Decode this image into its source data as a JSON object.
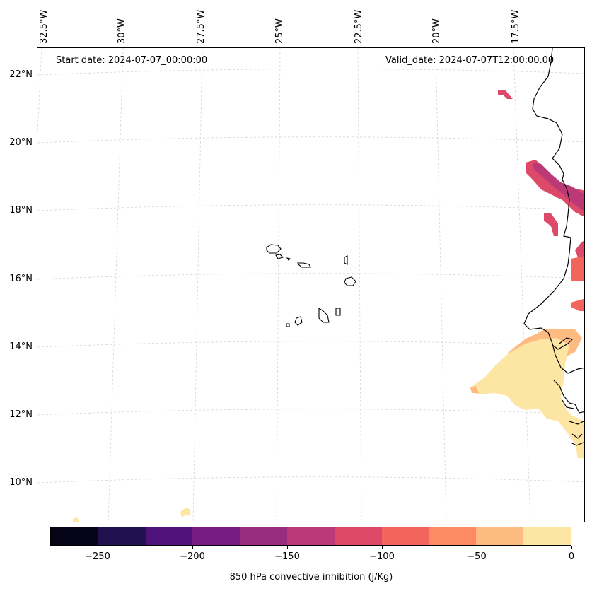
{
  "header": {
    "start_date": "Start date: 2024-07-07_00:00:00",
    "valid_date": "Valid_date: 2024-07-07T12:00:00.00"
  },
  "lon_labels": [
    "32.5°W",
    "30°W",
    "27.5°W",
    "25°W",
    "22.5°W",
    "20°W",
    "17.5°W"
  ],
  "lat_labels": [
    "22°N",
    "20°N",
    "18°N",
    "16°N",
    "14°N",
    "12°N",
    "10°N"
  ],
  "colorbar": {
    "label": "850 hPa convective inhibition (j/Kg)",
    "ticks": [
      "−250",
      "−200",
      "−150",
      "−100",
      "−50",
      "0"
    ],
    "range": [
      -275,
      0
    ],
    "colors": [
      "#050416",
      "#221150",
      "#4f117b",
      "#761c80",
      "#982d80",
      "#bc3978",
      "#dd4a69",
      "#f3655c",
      "#fc8a62",
      "#febb81",
      "#fde6a4"
    ]
  },
  "map": {
    "features": [
      "Cape Verde Islands",
      "West African coastline"
    ],
    "grid": "dashed light grey"
  }
}
